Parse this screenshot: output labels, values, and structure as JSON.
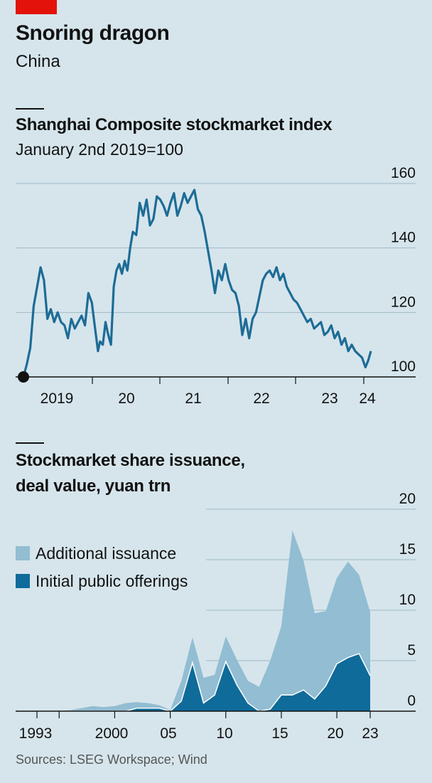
{
  "header": {
    "title": "Snoring dragon",
    "subtitle": "China"
  },
  "source": "Sources: LSEG Workspace; Wind",
  "colors": {
    "background": "#d6e5ec",
    "line": "#1d6c96",
    "additional": "#92bdd2",
    "ipo": "#0f6b9a",
    "accent_red": "#e3120b"
  },
  "chart_data": [
    {
      "type": "line",
      "title": "Shanghai Composite stockmarket index",
      "subtitle": "January 2nd 2019=100",
      "ylim": [
        100,
        160
      ],
      "yticks": [
        "160",
        "140",
        "120",
        "100"
      ],
      "xticks": [
        "2019",
        "20",
        "21",
        "22",
        "23",
        "24"
      ],
      "grid": true,
      "x": [
        2019.0,
        2019.05,
        2019.1,
        2019.15,
        2019.2,
        2019.25,
        2019.3,
        2019.35,
        2019.4,
        2019.45,
        2019.5,
        2019.55,
        2019.6,
        2019.65,
        2019.7,
        2019.75,
        2019.8,
        2019.85,
        2019.9,
        2019.95,
        2020.0,
        2020.03,
        2020.06,
        2020.09,
        2020.12,
        2020.16,
        2020.2,
        2020.24,
        2020.28,
        2020.32,
        2020.36,
        2020.4,
        2020.44,
        2020.48,
        2020.52,
        2020.56,
        2020.6,
        2020.65,
        2020.7,
        2020.75,
        2020.8,
        2020.85,
        2020.9,
        2020.95,
        2021.0,
        2021.05,
        2021.1,
        2021.15,
        2021.2,
        2021.25,
        2021.3,
        2021.35,
        2021.4,
        2021.45,
        2021.5,
        2021.55,
        2021.6,
        2021.65,
        2021.7,
        2021.75,
        2021.8,
        2021.85,
        2021.9,
        2021.95,
        2022.0,
        2022.05,
        2022.1,
        2022.15,
        2022.2,
        2022.25,
        2022.3,
        2022.35,
        2022.4,
        2022.45,
        2022.5,
        2022.55,
        2022.6,
        2022.65,
        2022.7,
        2022.75,
        2022.8,
        2022.85,
        2022.9,
        2022.95,
        2023.0,
        2023.05,
        2023.1,
        2023.15,
        2023.2,
        2023.25,
        2023.3,
        2023.35,
        2023.4,
        2023.45,
        2023.5,
        2023.55,
        2023.6,
        2023.65,
        2023.7,
        2023.75,
        2023.8,
        2023.85,
        2023.9,
        2023.95,
        2024.0,
        2024.04,
        2024.08
      ],
      "values": [
        100,
        104,
        109,
        122,
        128,
        134,
        130,
        118,
        121,
        117,
        120,
        117,
        116,
        112,
        118,
        115,
        117,
        119,
        116,
        126,
        123,
        118,
        113,
        108,
        111,
        110,
        117,
        113,
        110,
        128,
        133,
        135,
        132,
        136,
        133,
        140,
        145,
        144,
        154,
        150,
        155,
        147,
        149,
        156,
        155,
        153,
        150,
        154,
        157,
        150,
        153,
        157,
        154,
        156,
        158,
        152,
        150,
        145,
        139,
        133,
        126,
        133,
        130,
        135,
        130,
        127,
        126,
        122,
        113,
        118,
        112,
        118,
        120,
        125,
        130,
        132,
        133,
        131,
        134,
        130,
        132,
        128,
        126,
        124,
        123,
        121,
        119,
        117,
        118,
        115,
        116,
        117,
        113,
        114,
        116,
        112,
        114,
        110,
        112,
        108,
        110,
        108,
        107,
        106,
        103,
        105,
        108
      ]
    },
    {
      "type": "area",
      "title_lines": [
        "Stockmarket share issuance,",
        "deal value, yuan trn"
      ],
      "ylim": [
        0,
        20
      ],
      "yticks": [
        "20",
        "15",
        "10",
        "5",
        "0"
      ],
      "xticks": [
        "1993",
        "2000",
        "05",
        "10",
        "15",
        "20",
        "23"
      ],
      "grid": true,
      "legend_position": "top-left",
      "x": [
        1993,
        1994,
        1995,
        1996,
        1997,
        1998,
        1999,
        2000,
        2001,
        2002,
        2003,
        2004,
        2005,
        2006,
        2007,
        2008,
        2009,
        2010,
        2011,
        2012,
        2013,
        2014,
        2015,
        2016,
        2017,
        2018,
        2019,
        2020,
        2021,
        2022,
        2023
      ],
      "series": [
        {
          "name": "Additional issuance",
          "values": [
            0.05,
            0.05,
            0.05,
            0.1,
            0.3,
            0.5,
            0.4,
            0.5,
            0.8,
            0.6,
            0.5,
            0.3,
            0.1,
            2.0,
            2.5,
            2.5,
            2.0,
            2.5,
            2.5,
            2.2,
            2.4,
            4.8,
            6.8,
            16.3,
            12.8,
            8.5,
            7.4,
            8.5,
            9.5,
            7.8,
            6.3
          ]
        },
        {
          "name": "Initial public offerings",
          "values": [
            0,
            0,
            0,
            0,
            0,
            0,
            0,
            0,
            0,
            0.3,
            0.3,
            0.3,
            0,
            1.0,
            4.8,
            0.8,
            1.6,
            4.9,
            2.6,
            0.8,
            0,
            0.2,
            1.6,
            1.6,
            2.1,
            1.2,
            2.5,
            4.7,
            5.3,
            5.7,
            3.5
          ]
        }
      ]
    }
  ]
}
